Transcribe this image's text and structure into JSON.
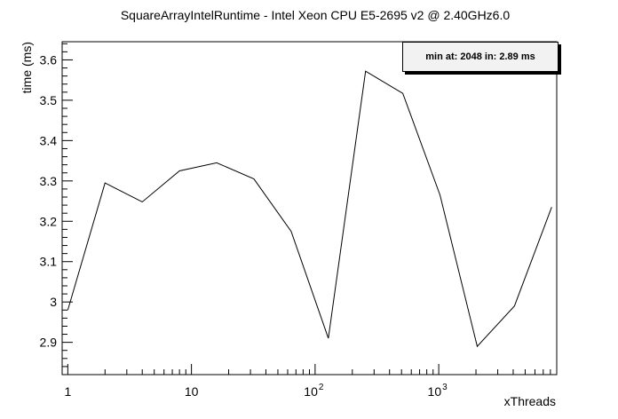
{
  "chart_data": {
    "type": "line",
    "title": "SquareArrayIntelRuntime - Intel Xeon CPU E5-2695 v2 @ 2.40GHz6.0",
    "xlabel": "xThreads",
    "ylabel": "time (ms)",
    "x_scale": "log",
    "xlim": [
      0.9,
      9000
    ],
    "ylim": [
      2.82,
      3.645
    ],
    "x_ticks": [
      {
        "value": 1,
        "base": "1",
        "exp": ""
      },
      {
        "value": 10,
        "base": "10",
        "exp": ""
      },
      {
        "value": 100,
        "base": "10",
        "exp": "2"
      },
      {
        "value": 1000,
        "base": "10",
        "exp": "3"
      }
    ],
    "y_ticks": [
      {
        "value": 2.9,
        "label": "2.9"
      },
      {
        "value": 3.0,
        "label": "3"
      },
      {
        "value": 3.1,
        "label": "3.1"
      },
      {
        "value": 3.2,
        "label": "3.2"
      },
      {
        "value": 3.3,
        "label": "3.3"
      },
      {
        "value": 3.4,
        "label": "3.4"
      },
      {
        "value": 3.5,
        "label": "3.5"
      },
      {
        "value": 3.6,
        "label": "3.6"
      }
    ],
    "x": [
      1,
      2,
      4,
      8,
      16,
      32,
      64,
      128,
      256,
      512,
      1024,
      2048,
      4096,
      8192
    ],
    "y": [
      2.98,
      3.295,
      3.248,
      3.325,
      3.345,
      3.305,
      3.175,
      2.91,
      3.572,
      3.517,
      3.265,
      2.89,
      2.99,
      3.235
    ],
    "grid": false,
    "legend": "none",
    "stats_text": "min at: 2048 in: 2.89 ms"
  }
}
